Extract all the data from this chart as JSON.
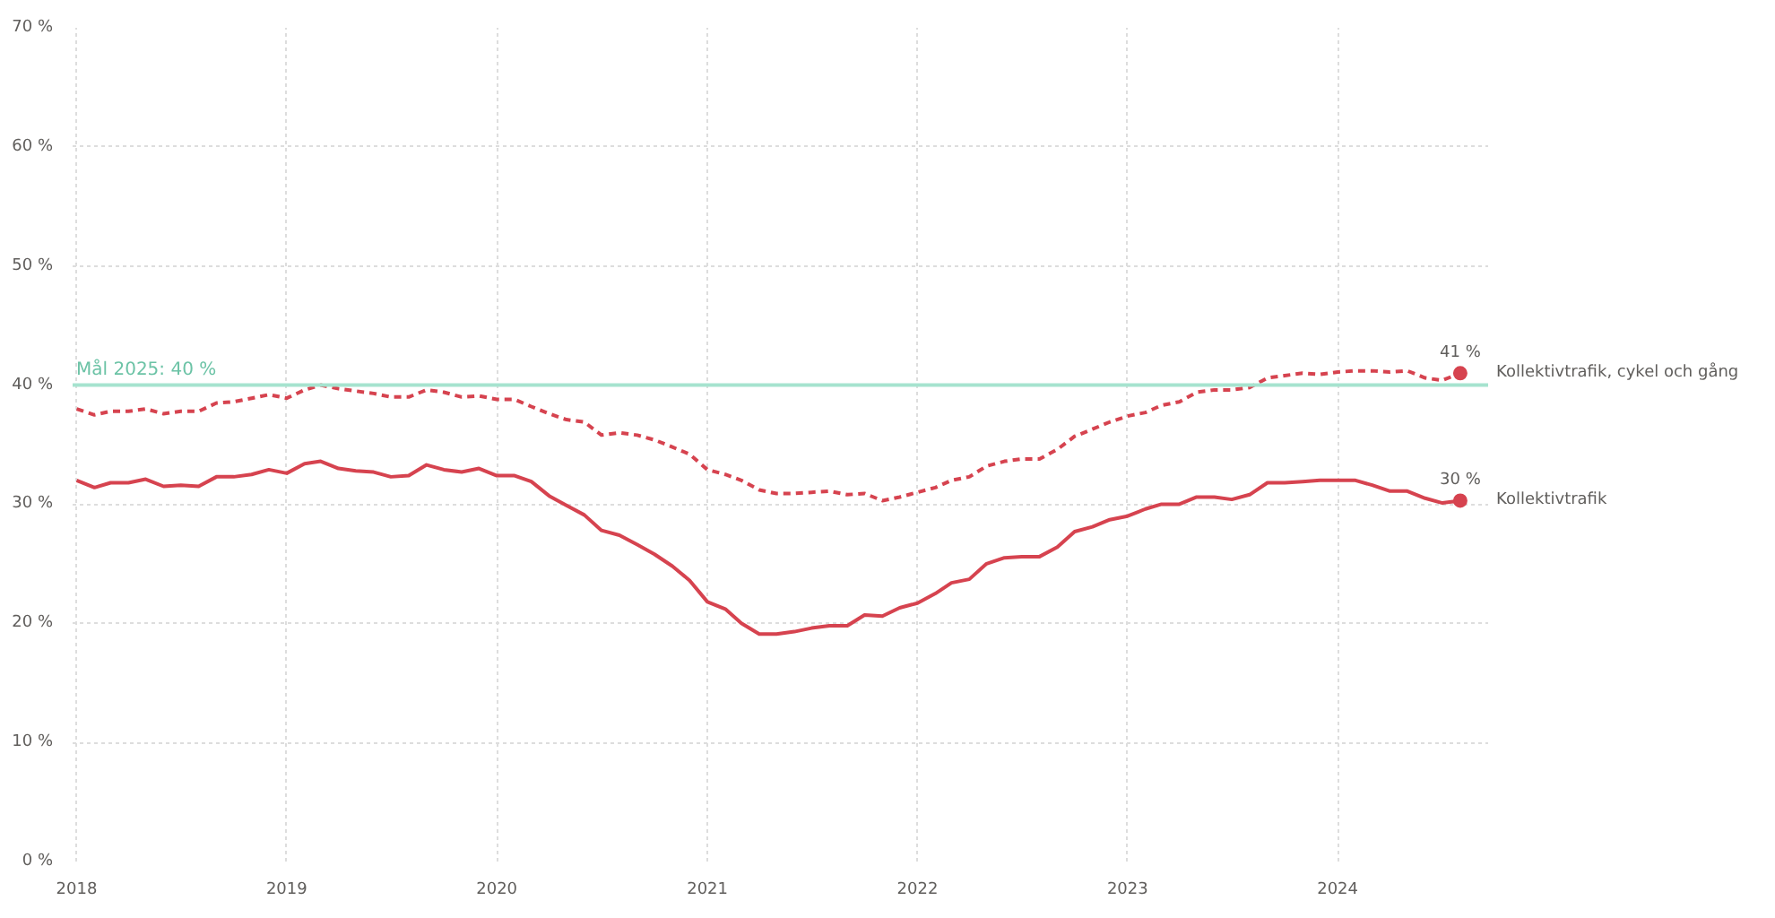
{
  "chart_data": {
    "type": "line",
    "x": [
      "2018-01",
      "2018-02",
      "2018-03",
      "2018-04",
      "2018-05",
      "2018-06",
      "2018-07",
      "2018-08",
      "2018-09",
      "2018-10",
      "2018-11",
      "2018-12",
      "2019-01",
      "2019-02",
      "2019-03",
      "2019-04",
      "2019-05",
      "2019-06",
      "2019-07",
      "2019-08",
      "2019-09",
      "2019-10",
      "2019-11",
      "2019-12",
      "2020-01",
      "2020-02",
      "2020-03",
      "2020-04",
      "2020-05",
      "2020-06",
      "2020-07",
      "2020-08",
      "2020-09",
      "2020-10",
      "2020-11",
      "2020-12",
      "2021-01",
      "2021-02",
      "2021-03",
      "2021-04",
      "2021-05",
      "2021-06",
      "2021-07",
      "2021-08",
      "2021-09",
      "2021-10",
      "2021-11",
      "2021-12",
      "2022-01",
      "2022-02",
      "2022-03",
      "2022-04",
      "2022-05",
      "2022-06",
      "2022-07",
      "2022-08",
      "2022-09",
      "2022-10",
      "2022-11",
      "2022-12",
      "2023-01",
      "2023-02",
      "2023-03",
      "2023-04",
      "2023-05",
      "2023-06",
      "2023-07",
      "2023-08",
      "2023-09",
      "2023-10",
      "2023-11",
      "2023-12",
      "2024-01",
      "2024-02",
      "2024-03",
      "2024-04",
      "2024-05",
      "2024-06",
      "2024-07",
      "2024-08"
    ],
    "series": [
      {
        "name": "Kollektivtrafik, cykel och gång",
        "color": "#d6434f",
        "line_style": "dashed",
        "values": [
          38.0,
          37.5,
          37.8,
          37.8,
          38.0,
          37.6,
          37.8,
          37.8,
          38.5,
          38.6,
          38.9,
          39.2,
          38.9,
          39.6,
          40.0,
          39.7,
          39.5,
          39.3,
          39.0,
          39.0,
          39.6,
          39.4,
          39.0,
          39.1,
          38.8,
          38.8,
          38.2,
          37.6,
          37.1,
          36.9,
          35.8,
          36.0,
          35.8,
          35.4,
          34.8,
          34.2,
          32.9,
          32.5,
          32.0,
          31.2,
          30.9,
          30.9,
          31.0,
          31.1,
          30.8,
          30.9,
          30.3,
          30.6,
          31.0,
          31.4,
          32.0,
          32.3,
          33.2,
          33.6,
          33.8,
          33.8,
          34.6,
          35.7,
          36.3,
          36.9,
          37.4,
          37.7,
          38.3,
          38.6,
          39.4,
          39.6,
          39.6,
          39.8,
          40.6,
          40.8,
          41.0,
          40.9,
          41.1,
          41.2,
          41.2,
          41.1,
          41.2,
          40.6,
          40.4,
          41.0
        ],
        "value_labels": [
          null,
          null,
          null,
          null,
          null,
          null,
          null,
          null,
          null,
          null,
          null,
          null,
          null,
          null,
          null,
          null,
          null,
          null,
          null,
          null,
          null,
          null,
          null,
          null,
          null,
          null,
          null,
          null,
          null,
          null,
          null,
          null,
          null,
          null,
          null,
          null,
          null,
          null,
          null,
          null,
          null,
          null,
          null,
          null,
          null,
          null,
          null,
          null,
          null,
          null,
          null,
          null,
          null,
          null,
          null,
          null,
          null,
          null,
          null,
          null,
          null,
          null,
          null,
          null,
          null,
          null,
          null,
          null,
          null,
          null,
          null,
          null,
          null,
          null,
          null,
          null,
          null,
          null,
          null,
          "41 %"
        ]
      },
      {
        "name": "Kollektivtrafik",
        "color": "#d6434f",
        "line_style": "solid",
        "values": [
          32.0,
          31.4,
          31.8,
          31.8,
          32.1,
          31.5,
          31.6,
          31.5,
          32.3,
          32.3,
          32.5,
          32.9,
          32.6,
          33.4,
          33.6,
          33.0,
          32.8,
          32.7,
          32.3,
          32.4,
          33.3,
          32.9,
          32.7,
          33.0,
          32.4,
          32.4,
          31.9,
          30.7,
          29.9,
          29.1,
          27.8,
          27.4,
          26.6,
          25.8,
          24.8,
          23.6,
          21.8,
          21.2,
          20.0,
          19.1,
          19.1,
          19.3,
          19.6,
          19.8,
          19.8,
          20.7,
          20.6,
          21.3,
          21.7,
          22.5,
          23.4,
          23.7,
          25.0,
          25.5,
          25.6,
          25.6,
          26.4,
          27.7,
          28.1,
          28.7,
          29.0,
          29.6,
          30.0,
          30.0,
          30.6,
          30.6,
          30.4,
          30.8,
          31.8,
          31.8,
          31.9,
          32.0,
          32.0,
          32.0,
          31.6,
          31.1,
          31.1,
          30.5,
          30.1,
          30.3
        ],
        "value_labels": [
          null,
          null,
          null,
          null,
          null,
          null,
          null,
          null,
          null,
          null,
          null,
          null,
          null,
          null,
          null,
          null,
          null,
          null,
          null,
          null,
          null,
          null,
          null,
          null,
          null,
          null,
          null,
          null,
          null,
          null,
          null,
          null,
          null,
          null,
          null,
          null,
          null,
          null,
          null,
          null,
          null,
          null,
          null,
          null,
          null,
          null,
          null,
          null,
          null,
          null,
          null,
          null,
          null,
          null,
          null,
          null,
          null,
          null,
          null,
          null,
          null,
          null,
          null,
          null,
          null,
          null,
          null,
          null,
          null,
          null,
          null,
          null,
          null,
          null,
          null,
          null,
          null,
          null,
          null,
          "30 %"
        ]
      }
    ],
    "xlim": [
      "2017-12-25",
      "2024-09-20"
    ],
    "xticks": [
      "2018",
      "2019",
      "2020",
      "2021",
      "2022",
      "2023",
      "2024"
    ],
    "ylim": [
      0,
      70
    ],
    "yticks": [
      {
        "value": 0,
        "label": "0 %"
      },
      {
        "value": 10,
        "label": "10 %"
      },
      {
        "value": 20,
        "label": "20 %"
      },
      {
        "value": 30,
        "label": "30 %"
      },
      {
        "value": 40,
        "label": "40 %"
      },
      {
        "value": 50,
        "label": "50 %"
      },
      {
        "value": 60,
        "label": "60 %"
      },
      {
        "value": 70,
        "label": "70 %"
      }
    ],
    "ref_lines": [
      {
        "axis": "y",
        "value": 40,
        "label": "Mål 2025: 40 %",
        "color": "#a6e3cf",
        "line_style": "solid"
      }
    ],
    "grid": true,
    "legend": false
  }
}
